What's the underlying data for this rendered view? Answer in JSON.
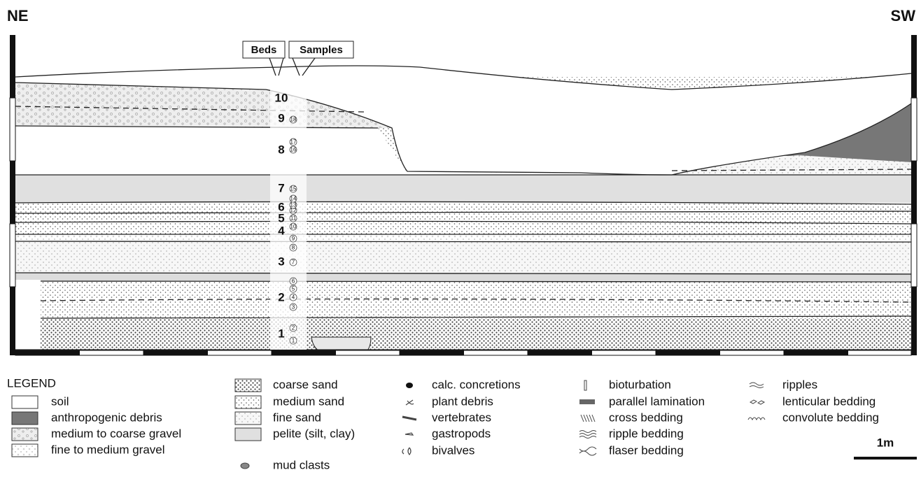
{
  "orientation": {
    "left": "NE",
    "right": "SW"
  },
  "column_headers": {
    "beds": "Beds",
    "samples": "Samples"
  },
  "beds": [
    "1",
    "2",
    "3",
    "4",
    "5",
    "6",
    "7",
    "8",
    "9",
    "10"
  ],
  "samples": [
    "1",
    "2",
    "3",
    "4",
    "5",
    "6",
    "7",
    "8",
    "9",
    "10",
    "11",
    "12",
    "13",
    "14",
    "15",
    "16",
    "17",
    "18"
  ],
  "legend": {
    "title": "LEGEND",
    "items": [
      "soil",
      "anthropogenic debris",
      "medium to coarse gravel",
      "fine to medium gravel",
      "coarse sand",
      "medium sand",
      "fine sand",
      "pelite (silt, clay)",
      "mud clasts",
      "calc. concretions",
      "plant debris",
      "vertebrates",
      "gastropods",
      "bivalves",
      "bioturbation",
      "parallel lamination",
      "cross bedding",
      "ripple bedding",
      "flaser bedding",
      "ripples",
      "lenticular bedding",
      "convolute bedding"
    ]
  },
  "scale_bar": "1m"
}
